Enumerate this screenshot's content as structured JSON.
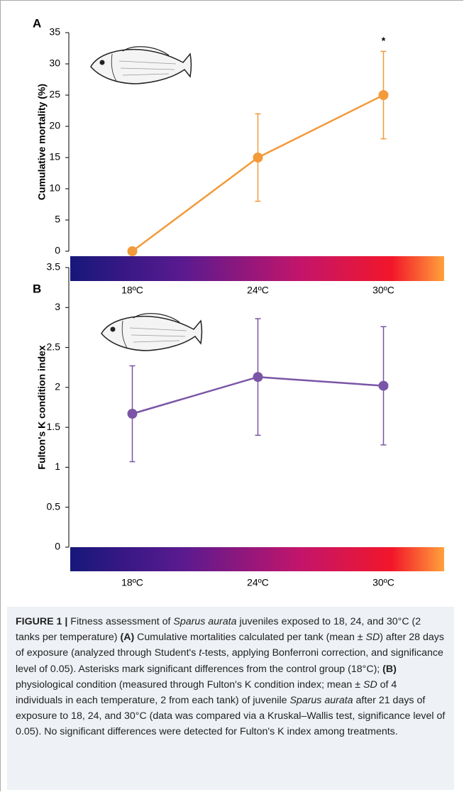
{
  "chart_data": [
    {
      "type": "line",
      "panel_label": "A",
      "ylabel": "Cumulative mortality (%)",
      "categories": [
        "18ºC",
        "24ºC",
        "30ºC"
      ],
      "values": [
        0,
        15,
        25
      ],
      "errors": [
        0,
        7,
        7
      ],
      "color": "#f39a3a",
      "ylim": [
        0,
        35
      ],
      "yticks": [
        0,
        5,
        10,
        15,
        20,
        25,
        30,
        35
      ],
      "grid": false,
      "annotation": "*"
    },
    {
      "type": "line",
      "panel_label": "B",
      "ylabel": "Fulton's K condition index",
      "categories": [
        "18ºC",
        "24ºC",
        "30ºC"
      ],
      "values": [
        1.67,
        2.13,
        2.02
      ],
      "errors": [
        0.6,
        0.73,
        0.74
      ],
      "color": "#7a55a6",
      "ylim": [
        0,
        3.5
      ],
      "yticks": [
        0,
        0.5,
        1,
        1.5,
        2,
        2.5,
        3,
        3.5
      ],
      "grid": false
    }
  ],
  "caption": [
    {
      "text": "FIGURE 1 |",
      "style": "bold"
    },
    {
      "text": " Fitness assessment of ",
      "style": "normal"
    },
    {
      "text": "Sparus aurata",
      "style": "italic"
    },
    {
      "text": " juveniles exposed to 18, 24, and 30°C (2 tanks per temperature) ",
      "style": "normal"
    },
    {
      "text": "(A)",
      "style": "bold"
    },
    {
      "text": " Cumulative mortalities calculated per tank (mean ± ",
      "style": "normal"
    },
    {
      "text": "SD",
      "style": "italic"
    },
    {
      "text": ") after 28 days of exposure (analyzed through Student's ",
      "style": "normal"
    },
    {
      "text": "t",
      "style": "italic"
    },
    {
      "text": "-tests, applying Bonferroni correction, and significance level of 0.05). Asterisks mark significant differences from the control group (18°C); ",
      "style": "normal"
    },
    {
      "text": "(B)",
      "style": "bold"
    },
    {
      "text": " physiological condition (measured through Fulton's K condition index; mean ± ",
      "style": "normal"
    },
    {
      "text": "SD",
      "style": "italic"
    },
    {
      "text": " of 4 individuals in each temperature, 2 from each tank) of juvenile ",
      "style": "normal"
    },
    {
      "text": "Sparus aurata",
      "style": "italic"
    },
    {
      "text": " after 21 days of exposure to 18, 24, and 30°C (data was compared via a Kruskal–Wallis test, significance level of 0.05). No significant differences were detected for Fulton's K index among treatments.",
      "style": "normal"
    }
  ]
}
